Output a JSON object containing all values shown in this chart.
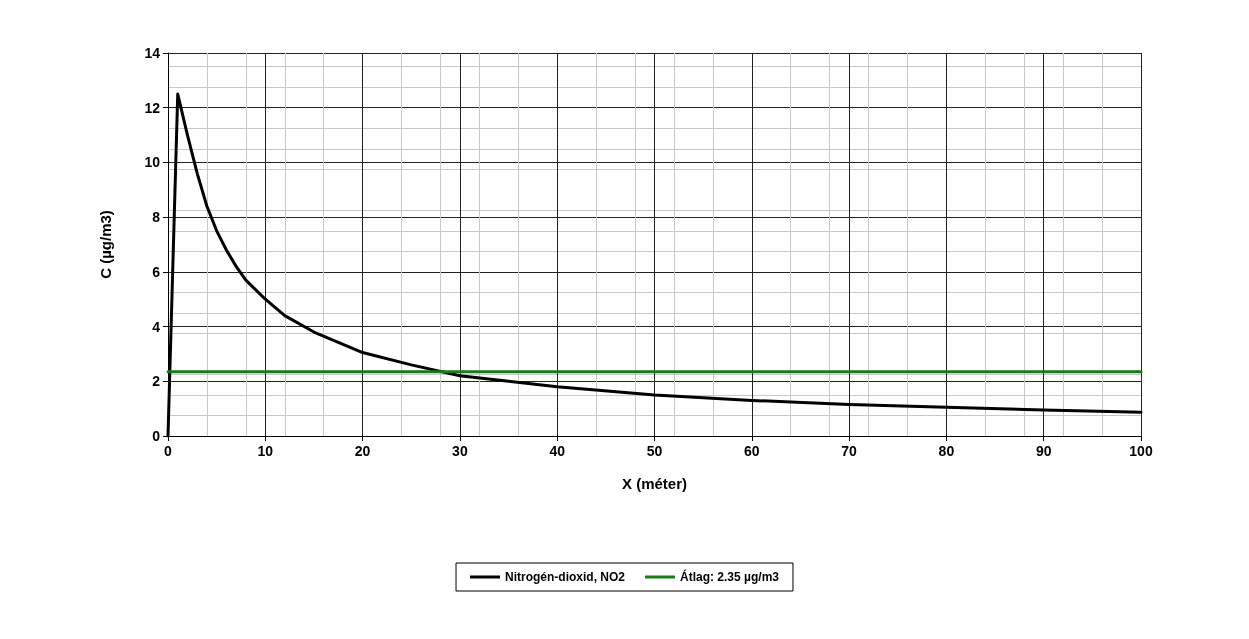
{
  "chart_data": {
    "type": "line",
    "xlabel": "X (méter)",
    "ylabel": "C (µg/m3)",
    "xlim": [
      0,
      100
    ],
    "xticks": [
      0,
      10,
      20,
      30,
      40,
      50,
      60,
      70,
      80,
      90,
      100
    ],
    "ylim": [
      0,
      14
    ],
    "yticks": [
      0,
      2,
      4,
      6,
      8,
      10,
      12,
      14
    ],
    "grid": true,
    "legend": "bottom",
    "marker": "none",
    "line_style": "solid",
    "series": [
      {
        "name": "Nitrogén-dioxid, NO2",
        "color": "#000000",
        "x": [
          0,
          1,
          2,
          3,
          4,
          5,
          6,
          7,
          8,
          10,
          12,
          15,
          20,
          25,
          30,
          35,
          40,
          50,
          60,
          70,
          80,
          90,
          100
        ],
        "values": [
          0,
          12.5,
          11.0,
          9.6,
          8.4,
          7.5,
          6.8,
          6.2,
          5.7,
          5.0,
          4.4,
          3.8,
          3.05,
          2.6,
          2.2,
          2.0,
          1.8,
          1.5,
          1.3,
          1.15,
          1.05,
          0.95,
          0.87
        ]
      },
      {
        "name": "Átlag: 2.35 µg/m3",
        "color": "#1a7a1a",
        "x": [
          0,
          100
        ],
        "values": [
          2.35,
          2.35
        ]
      }
    ]
  }
}
